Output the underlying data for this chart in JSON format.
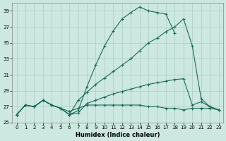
{
  "xlabel": "Humidex (Indice chaleur)",
  "background_color": "#cce8e0",
  "grid_color": "#aaccc4",
  "line_color": "#1a6b5a",
  "xlim": [
    -0.5,
    23.5
  ],
  "ylim": [
    25,
    40
  ],
  "yticks": [
    25,
    27,
    29,
    31,
    33,
    35,
    37,
    39
  ],
  "xticks": [
    0,
    1,
    2,
    3,
    4,
    5,
    6,
    7,
    8,
    9,
    10,
    11,
    12,
    13,
    14,
    15,
    16,
    17,
    18,
    19,
    20,
    21,
    22,
    23
  ],
  "lines": [
    {
      "x": [
        0,
        1,
        2,
        3,
        4,
        5,
        6,
        7,
        8,
        9,
        10,
        11,
        12,
        13,
        14,
        15,
        16,
        17,
        18,
        19,
        20,
        21,
        22,
        23
      ],
      "y": [
        26.0,
        27.2,
        27.0,
        27.8,
        27.2,
        26.8,
        26.0,
        26.5,
        29.5,
        32.2,
        34.6,
        36.5,
        38.0,
        38.8,
        39.5,
        39.0,
        38.8,
        38.6,
        36.2,
        null,
        null,
        null,
        null,
        null
      ]
    },
    {
      "x": [
        0,
        1,
        2,
        3,
        4,
        5,
        6,
        7,
        8,
        9,
        10,
        11,
        12,
        13,
        14,
        15,
        16,
        17,
        18,
        19,
        20,
        21,
        22,
        23
      ],
      "y": [
        26.0,
        27.2,
        27.0,
        27.8,
        27.2,
        26.8,
        26.0,
        27.8,
        28.8,
        29.8,
        30.6,
        31.4,
        32.2,
        33.0,
        34.0,
        35.0,
        35.6,
        36.4,
        37.0,
        38.0,
        34.6,
        28.0,
        27.0,
        26.6
      ]
    },
    {
      "x": [
        0,
        1,
        2,
        3,
        4,
        5,
        6,
        7,
        8,
        9,
        10,
        11,
        12,
        13,
        14,
        15,
        16,
        17,
        18,
        19,
        20,
        21,
        22,
        23
      ],
      "y": [
        26.0,
        27.2,
        27.0,
        27.8,
        27.2,
        26.8,
        26.0,
        26.2,
        27.4,
        27.8,
        28.2,
        28.6,
        28.9,
        29.2,
        29.5,
        29.8,
        30.0,
        30.2,
        30.4,
        30.5,
        27.2,
        27.6,
        27.0,
        26.6
      ]
    },
    {
      "x": [
        0,
        1,
        2,
        3,
        4,
        5,
        6,
        7,
        8,
        9,
        10,
        11,
        12,
        13,
        14,
        15,
        16,
        17,
        18,
        19,
        20,
        21,
        22,
        23
      ],
      "y": [
        26.0,
        27.2,
        27.0,
        27.8,
        27.2,
        26.8,
        26.4,
        26.8,
        27.2,
        27.2,
        27.2,
        27.2,
        27.2,
        27.2,
        27.2,
        27.0,
        27.0,
        26.8,
        26.8,
        26.6,
        26.8,
        26.8,
        26.8,
        26.6
      ]
    }
  ]
}
